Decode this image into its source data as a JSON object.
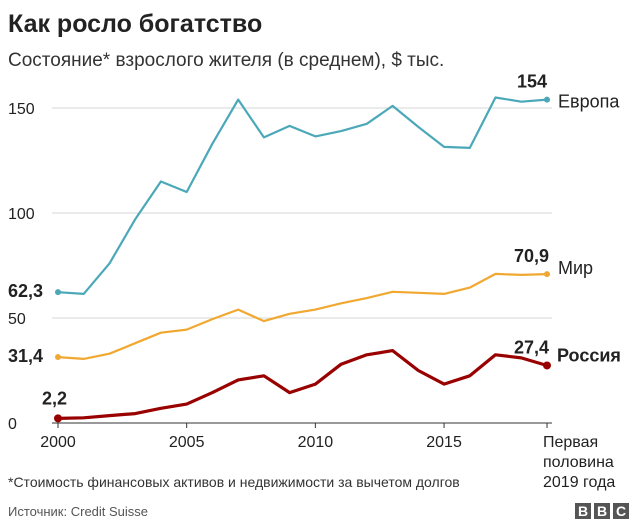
{
  "header": {
    "title": "Как росло богатство",
    "subtitle": "Состояние* взрослого жителя (в среднем), $ тыс."
  },
  "footer": {
    "footnote": "*Стоимость финансовых активов и недвижимости за вычетом долгов",
    "source": "Источник: Credit Suisse",
    "logo_letters": [
      "B",
      "B",
      "C"
    ]
  },
  "chart_data": {
    "type": "line",
    "title": "Как росло богатство",
    "subtitle": "Состояние* взрослого жителя (в среднем), $ тыс.",
    "xlabel": "",
    "ylabel": "",
    "ylim": [
      0,
      160
    ],
    "yticks": [
      0,
      50,
      100,
      150
    ],
    "xticks": [
      "2000",
      "2005",
      "2010",
      "2015",
      "Первая половина 2019 года"
    ],
    "x": [
      "2000",
      "2001",
      "2002",
      "2003",
      "2004",
      "2005",
      "2006",
      "2007",
      "2008",
      "2009",
      "2010",
      "2011",
      "2012",
      "2013",
      "2014",
      "2015",
      "2016",
      "2017",
      "2018",
      "Первая половина 2019 года"
    ],
    "grid": true,
    "series": [
      {
        "name": "Европа",
        "color": "#4ba8b8",
        "label_start": "62,3",
        "label_end": "154",
        "values": [
          62.3,
          61.5,
          76,
          97,
          115,
          110,
          133,
          154,
          136,
          141.5,
          136.5,
          139,
          142.5,
          151,
          141,
          131.5,
          131,
          155,
          153,
          154
        ]
      },
      {
        "name": "Мир",
        "color": "#f0a830",
        "label_start": "31,4",
        "label_end": "70,9",
        "values": [
          31.4,
          30.5,
          33,
          38,
          43,
          44.5,
          49.5,
          54,
          48.5,
          52,
          54,
          57,
          59.5,
          62.5,
          62,
          61.5,
          64.5,
          71,
          70.5,
          70.9
        ]
      },
      {
        "name": "Россия",
        "color": "#990000",
        "label_start": "2,2",
        "label_end": "27,4",
        "values": [
          2.2,
          2.5,
          3.5,
          4.5,
          7,
          9,
          14.5,
          20.5,
          22.5,
          14.5,
          18.5,
          28,
          32.5,
          34.5,
          25,
          18.5,
          22.5,
          32.5,
          31,
          27.4
        ]
      }
    ]
  }
}
